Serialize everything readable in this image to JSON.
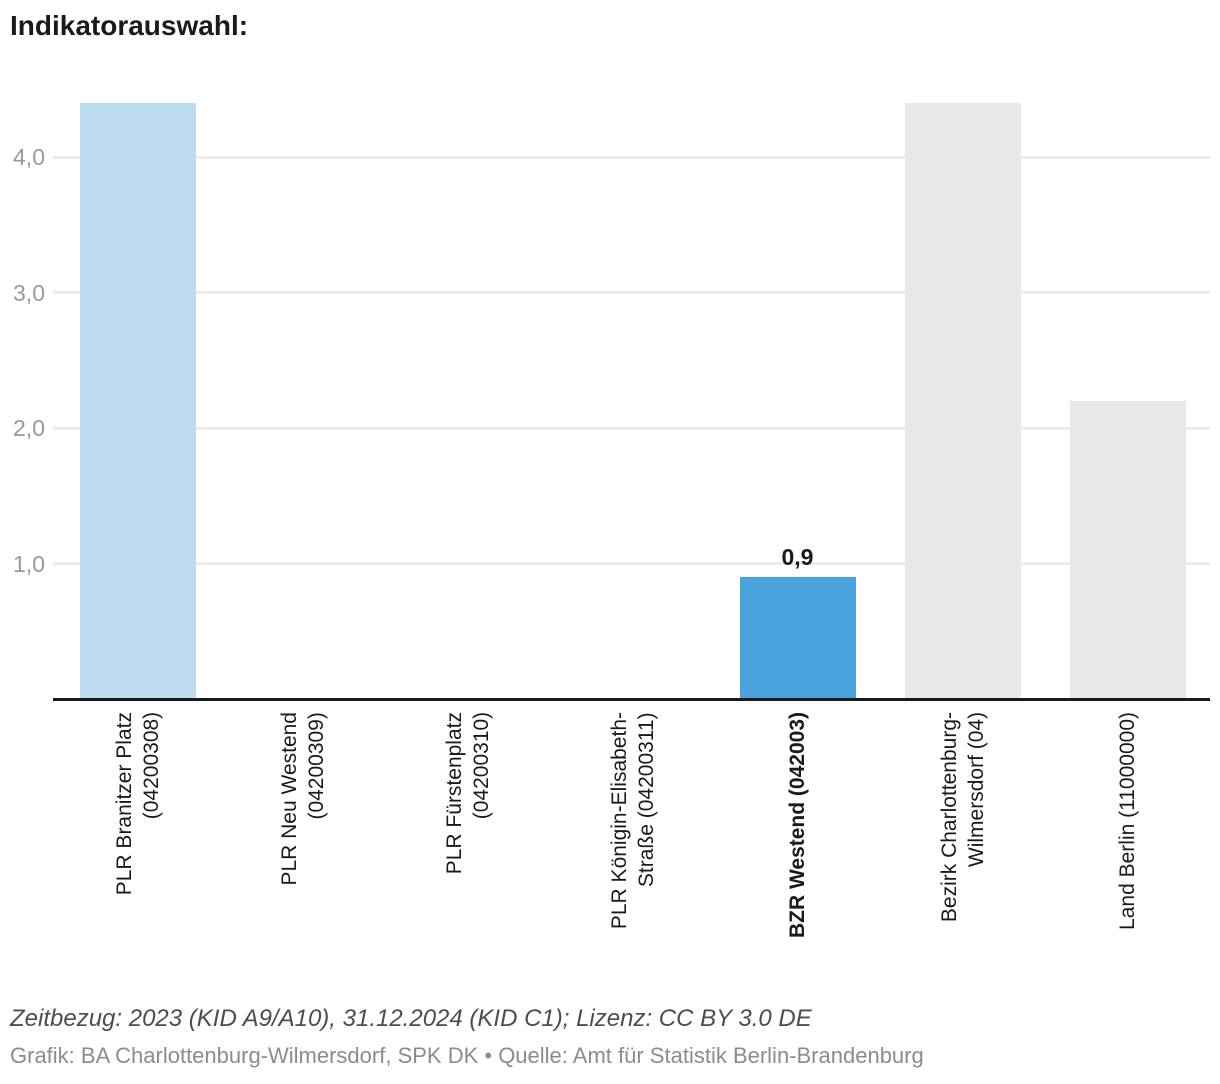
{
  "title": "Indikatorauswahl:",
  "chart_data": {
    "type": "bar",
    "title": "Indikatorauswahl:",
    "categories": [
      "PLR Branitzer Platz\n(04200308)",
      "PLR Neu Westend\n(04200309)",
      "PLR Fürstenplatz\n(04200310)",
      "PLR Königin-Elisabeth-\nStraße (04200311)",
      "BZR Westend (042003)",
      "Bezirk Charlottenburg-\nWilmersdorf (04)",
      "Land Berlin (11000000)"
    ],
    "values": [
      4.4,
      0,
      0,
      0,
      0.9,
      4.4,
      2.2
    ],
    "bar_colors": [
      "#bedcf0",
      "#bedcf0",
      "#bedcf0",
      "#bedcf0",
      "#4aa2dc",
      "#e8e8e8",
      "#e8e8e8"
    ],
    "data_labels": [
      "",
      "",
      "",
      "",
      "0,9",
      "",
      ""
    ],
    "bold_category_index": 4,
    "yticks": [
      "1,0",
      "2,0",
      "3,0",
      "4,0"
    ],
    "ylim": [
      0,
      4.55
    ],
    "xlabel": "",
    "ylabel": "",
    "grid": true,
    "legend": "none",
    "grid_color": "#ebebeb",
    "axis_line_color": "#1a1a1a",
    "tick_label_color": "#999999",
    "category_label_color": "#1a1a1a",
    "value_label_color": "#1a1a1a"
  },
  "footer": {
    "line1": "Zeitbezug: 2023 (KID A9/A10), 31.12.2024 (KID C1); Lizenz: CC BY 3.0 DE",
    "line2": "Grafik: BA Charlottenburg-Wilmersdorf, SPK DK • Quelle: Amt für Statistik Berlin-Brandenburg"
  }
}
